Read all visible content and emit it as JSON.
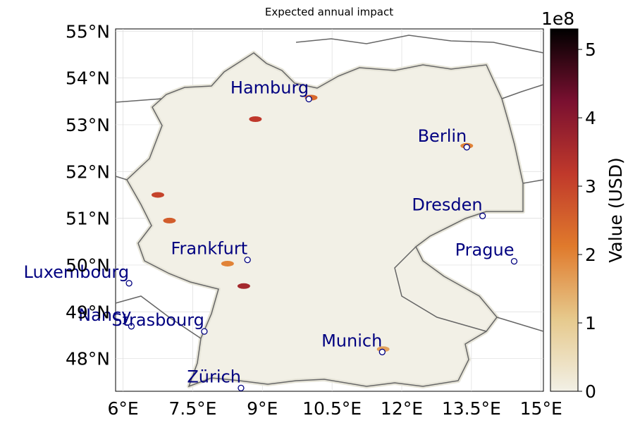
{
  "title": "Expected annual impact",
  "x_ticks": [
    "6°E",
    "7.5°E",
    "9°E",
    "10.5°E",
    "12°E",
    "13.5°E",
    "15°E"
  ],
  "y_ticks": [
    "55°N",
    "54°N",
    "53°N",
    "52°N",
    "51°N",
    "50°N",
    "49°N",
    "48°N"
  ],
  "cities": [
    {
      "name": "Hamburg",
      "lon": 10.0,
      "lat": 53.55
    },
    {
      "name": "Berlin",
      "lon": 13.4,
      "lat": 52.52
    },
    {
      "name": "Dresden",
      "lon": 13.74,
      "lat": 51.05
    },
    {
      "name": "Frankfurt",
      "lon": 8.68,
      "lat": 50.11
    },
    {
      "name": "Prague",
      "lon": 14.42,
      "lat": 50.08
    },
    {
      "name": "Luxembourg",
      "lon": 6.13,
      "lat": 49.61
    },
    {
      "name": "Nancy",
      "lon": 6.18,
      "lat": 48.69
    },
    {
      "name": "Strasbourg",
      "lon": 7.75,
      "lat": 48.58
    },
    {
      "name": "Munich",
      "lon": 11.58,
      "lat": 48.14
    },
    {
      "name": "Zürich",
      "lon": 8.54,
      "lat": 47.37
    }
  ],
  "colorbar": {
    "label": "Value (USD)",
    "exponent": "1e8",
    "ticks": [
      "0",
      "1",
      "2",
      "3",
      "4",
      "5"
    ],
    "min": 0,
    "max": 5.3,
    "colors": [
      "#f2f0e6",
      "#e6c98c",
      "#e07a2c",
      "#c0392b",
      "#7a1030",
      "#000000"
    ]
  },
  "hotspots": [
    {
      "lon": 10.05,
      "lat": 53.58,
      "value": 2.4
    },
    {
      "lon": 8.85,
      "lat": 53.12,
      "value": 3.2
    },
    {
      "lon": 13.4,
      "lat": 52.55,
      "value": 2.0
    },
    {
      "lon": 6.75,
      "lat": 51.5,
      "value": 3.0
    },
    {
      "lon": 7.0,
      "lat": 50.95,
      "value": 2.6
    },
    {
      "lon": 8.6,
      "lat": 49.55,
      "value": 3.6
    },
    {
      "lon": 8.25,
      "lat": 50.03,
      "value": 2.0
    },
    {
      "lon": 11.6,
      "lat": 48.2,
      "value": 1.6
    }
  ]
}
